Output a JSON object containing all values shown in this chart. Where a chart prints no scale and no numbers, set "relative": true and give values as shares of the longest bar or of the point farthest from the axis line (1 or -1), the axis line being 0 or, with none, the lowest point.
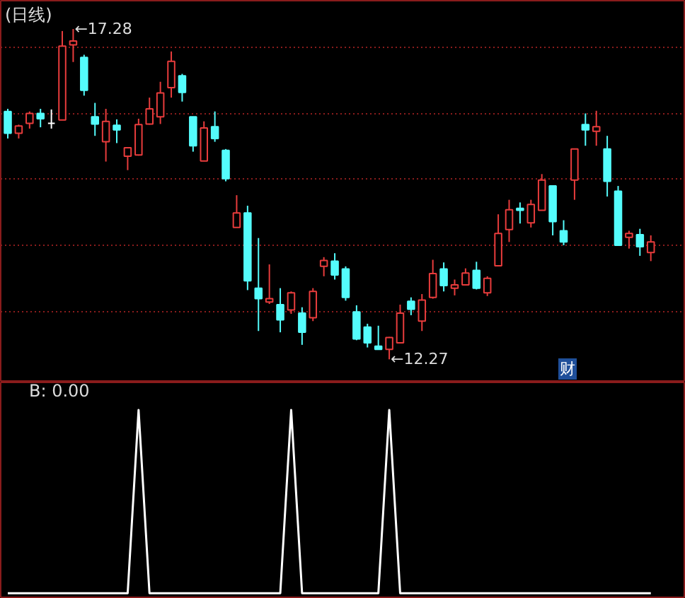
{
  "chart_data": [
    {
      "type": "candlestick",
      "title": "(日线)",
      "categories": [
        null,
        null,
        null,
        null,
        null,
        null,
        null,
        null,
        null,
        null,
        null,
        null,
        null,
        null,
        null,
        null,
        null,
        null,
        null,
        null,
        null,
        null,
        null,
        null,
        null,
        null,
        null,
        null,
        null,
        null,
        null,
        null,
        null,
        null,
        null,
        null,
        null,
        null,
        null,
        null,
        null,
        null,
        null,
        null,
        null,
        null,
        null,
        null,
        null,
        null,
        null,
        null,
        null,
        null,
        null,
        null,
        null,
        null,
        null,
        null
      ],
      "ohlc": [
        [
          16.03,
          16.07,
          15.62,
          15.7
        ],
        [
          15.7,
          15.83,
          15.62,
          15.81
        ],
        [
          15.85,
          16.03,
          15.77,
          16.0
        ],
        [
          16.0,
          16.07,
          15.79,
          15.92
        ],
        [
          15.85,
          16.06,
          15.77,
          15.85
        ],
        [
          15.9,
          17.25,
          15.9,
          17.02
        ],
        [
          17.04,
          17.28,
          16.78,
          17.1
        ],
        [
          16.85,
          16.89,
          16.27,
          16.35
        ],
        [
          15.95,
          16.16,
          15.66,
          15.84
        ],
        [
          15.57,
          16.07,
          15.27,
          15.88
        ],
        [
          15.82,
          15.91,
          15.55,
          15.75
        ],
        [
          15.35,
          15.49,
          15.14,
          15.48
        ],
        [
          15.37,
          15.92,
          15.36,
          15.83
        ],
        [
          15.84,
          16.24,
          15.83,
          16.07
        ],
        [
          15.95,
          16.48,
          15.84,
          16.31
        ],
        [
          16.39,
          16.94,
          16.24,
          16.79
        ],
        [
          16.57,
          16.6,
          16.18,
          16.32
        ],
        [
          15.95,
          15.95,
          15.42,
          15.51
        ],
        [
          15.28,
          15.88,
          15.28,
          15.78
        ],
        [
          15.8,
          16.03,
          15.57,
          15.62
        ],
        [
          15.44,
          15.46,
          14.97,
          15.01
        ],
        [
          14.27,
          14.76,
          14.27,
          14.49
        ],
        [
          14.49,
          14.6,
          13.32,
          13.46
        ],
        [
          13.35,
          14.11,
          12.7,
          13.19
        ],
        [
          13.14,
          13.71,
          13.11,
          13.19
        ],
        [
          13.1,
          13.35,
          12.68,
          12.87
        ],
        [
          13.02,
          13.3,
          12.96,
          13.28
        ],
        [
          12.97,
          13.06,
          12.49,
          12.68
        ],
        [
          12.9,
          13.35,
          12.85,
          13.3
        ],
        [
          13.68,
          13.82,
          13.53,
          13.77
        ],
        [
          13.76,
          13.88,
          13.48,
          13.55
        ],
        [
          13.64,
          13.68,
          13.16,
          13.21
        ],
        [
          12.99,
          13.09,
          12.56,
          12.58
        ],
        [
          12.76,
          12.81,
          12.45,
          12.52
        ],
        [
          12.47,
          12.78,
          12.42,
          12.42
        ],
        [
          12.42,
          12.61,
          12.27,
          12.6
        ],
        [
          12.52,
          13.1,
          12.52,
          12.97
        ],
        [
          13.15,
          13.21,
          12.94,
          13.03
        ],
        [
          12.85,
          13.26,
          12.7,
          13.17
        ],
        [
          13.21,
          13.78,
          13.19,
          13.57
        ],
        [
          13.64,
          13.74,
          13.3,
          13.39
        ],
        [
          13.35,
          13.48,
          13.24,
          13.4
        ],
        [
          13.4,
          13.65,
          13.39,
          13.58
        ],
        [
          13.62,
          13.75,
          13.33,
          13.35
        ],
        [
          13.28,
          13.53,
          13.23,
          13.5
        ],
        [
          13.69,
          14.47,
          13.68,
          14.18
        ],
        [
          14.24,
          14.69,
          14.05,
          14.54
        ],
        [
          14.56,
          14.65,
          14.33,
          14.53
        ],
        [
          14.34,
          14.69,
          14.27,
          14.62
        ],
        [
          14.53,
          15.08,
          14.53,
          14.99
        ],
        [
          14.9,
          14.9,
          14.15,
          14.36
        ],
        [
          14.22,
          14.38,
          14.0,
          14.05
        ],
        [
          14.99,
          15.46,
          14.69,
          15.46
        ],
        [
          15.83,
          16.0,
          15.51,
          15.75
        ],
        [
          15.73,
          16.04,
          15.51,
          15.8
        ],
        [
          15.46,
          15.66,
          14.74,
          14.97
        ],
        [
          14.82,
          14.9,
          14.0,
          14.0
        ],
        [
          14.12,
          14.22,
          13.95,
          14.18
        ],
        [
          14.16,
          14.25,
          13.84,
          13.98
        ],
        [
          13.89,
          14.15,
          13.76,
          14.05
        ]
      ],
      "colors": [
        "#54fcfc",
        "#e83c3c",
        "#e83c3c",
        "#54fcfc",
        "#ffffff",
        "#e83c3c",
        "#e83c3c",
        "#54fcfc",
        "#54fcfc",
        "#e83c3c",
        "#54fcfc",
        "#e83c3c",
        "#e83c3c",
        "#e83c3c",
        "#e83c3c",
        "#e83c3c",
        "#54fcfc",
        "#54fcfc",
        "#e83c3c",
        "#54fcfc",
        "#54fcfc",
        "#e83c3c",
        "#54fcfc",
        "#54fcfc",
        "#e83c3c",
        "#54fcfc",
        "#e83c3c",
        "#54fcfc",
        "#e83c3c",
        "#e83c3c",
        "#54fcfc",
        "#54fcfc",
        "#54fcfc",
        "#54fcfc",
        "#54fcfc",
        "#e83c3c",
        "#e83c3c",
        "#54fcfc",
        "#e83c3c",
        "#e83c3c",
        "#54fcfc",
        "#e83c3c",
        "#e83c3c",
        "#54fcfc",
        "#e83c3c",
        "#e83c3c",
        "#e83c3c",
        "#54fcfc",
        "#e83c3c",
        "#e83c3c",
        "#54fcfc",
        "#54fcfc",
        "#e83c3c",
        "#54fcfc",
        "#e83c3c",
        "#54fcfc",
        "#54fcfc",
        "#e83c3c",
        "#54fcfc",
        "#e83c3c"
      ],
      "ylim": [
        11.92,
        17.71
      ],
      "yticks": [
        {
          "value": 13,
          "label": null
        },
        {
          "value": 14,
          "label": null
        },
        {
          "value": 15,
          "label": null
        },
        {
          "value": 16,
          "label": null
        },
        {
          "value": 17,
          "label": null
        }
      ],
      "grid": "y",
      "tick_labels": false,
      "annotations": [
        "←17.28",
        "←12.27",
        "财"
      ]
    },
    {
      "type": "line",
      "title": "B: 0.00",
      "categories": [
        null,
        null,
        null,
        null,
        null,
        null,
        null,
        null,
        null,
        null,
        null,
        null,
        null,
        null,
        null,
        null,
        null,
        null,
        null,
        null,
        null,
        null,
        null,
        null,
        null,
        null,
        null,
        null,
        null,
        null,
        null,
        null,
        null,
        null,
        null,
        null,
        null,
        null,
        null,
        null,
        null,
        null,
        null,
        null,
        null,
        null,
        null,
        null,
        null,
        null,
        null,
        null,
        null,
        null,
        null,
        null,
        null,
        null,
        null,
        null
      ],
      "series": [
        {
          "color": "#ffffff",
          "values": [
            0,
            0,
            0,
            0,
            0,
            0,
            0,
            0,
            0,
            0,
            0,
            0,
            1,
            0,
            0,
            0,
            0,
            0,
            0,
            0,
            0,
            0,
            0,
            0,
            0,
            0,
            1,
            0,
            0,
            0,
            0,
            0,
            0,
            0,
            0,
            1,
            0,
            0,
            0,
            0,
            0,
            0,
            0,
            0,
            0,
            0,
            0,
            0,
            0,
            0,
            0,
            0,
            0,
            0,
            0,
            0,
            0,
            0,
            0,
            0
          ]
        }
      ],
      "relative": true,
      "tick_labels": false
    }
  ]
}
